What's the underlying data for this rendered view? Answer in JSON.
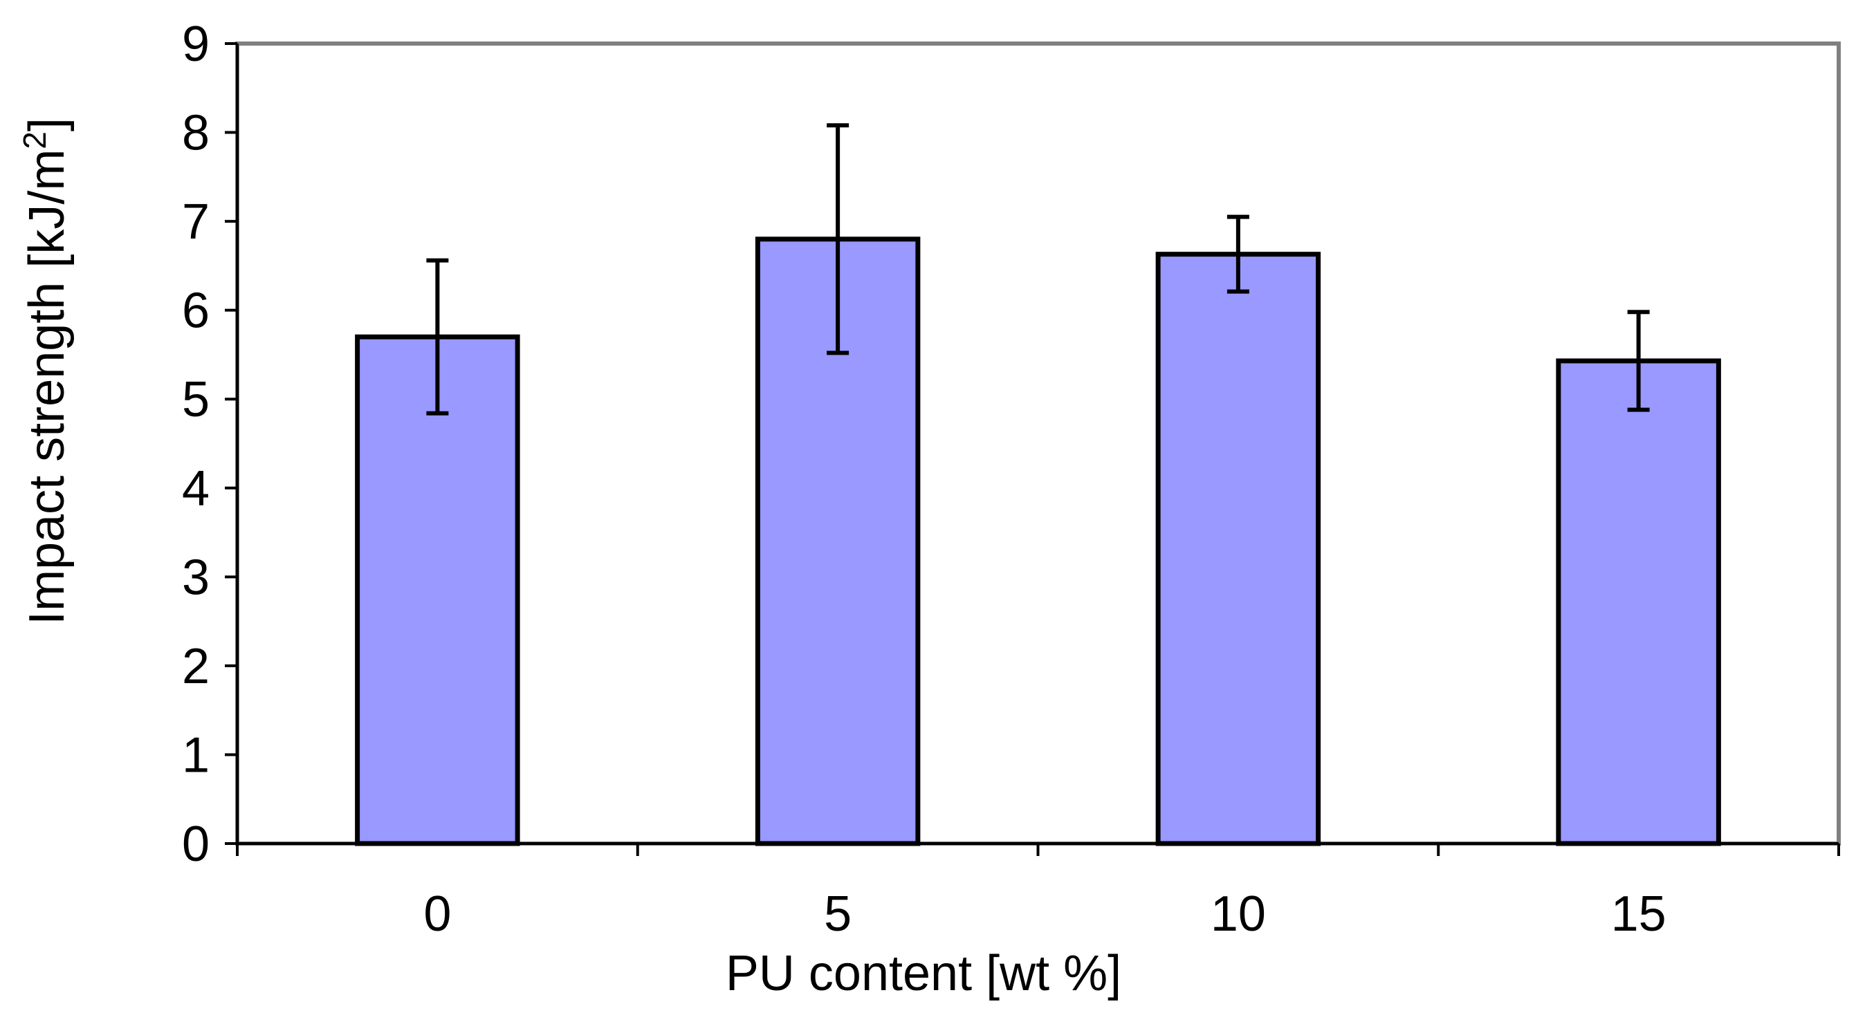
{
  "chart_data": {
    "type": "bar",
    "categories": [
      "0",
      "5",
      "10",
      "15"
    ],
    "series": [
      {
        "values": [
          5.7,
          6.8,
          6.63,
          5.43
        ],
        "errors": [
          0.86,
          1.28,
          0.42,
          0.55
        ]
      }
    ],
    "title": "",
    "xlabel": "PU content [wt %]",
    "ylabel": "Impact strength [kJ/m2]",
    "ylim": [
      0,
      9
    ],
    "yticks": [
      "0",
      "1",
      "2",
      "3",
      "4",
      "5",
      "6",
      "7",
      "8",
      "9"
    ],
    "grid": false,
    "legend": "none",
    "colors": {
      "bar_fill": "#9999ff",
      "bar_stroke": "#000000",
      "frame": "#808080",
      "axis": "#000000",
      "error_bar": "#000000"
    }
  }
}
